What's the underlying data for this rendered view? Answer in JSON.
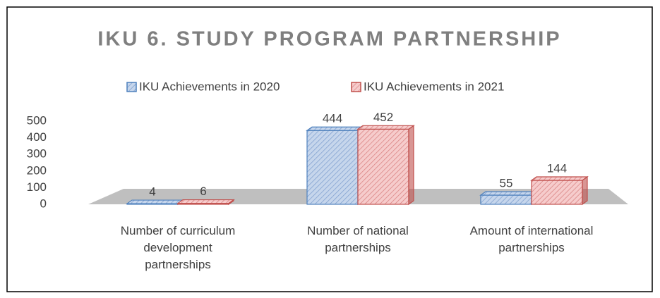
{
  "chart_data": {
    "type": "bar3d",
    "title": "IKU 6. STUDY PROGRAM PARTNERSHIP",
    "categories": [
      "Number of curriculum development partnerships",
      "Number of national partnerships",
      "Amount of international partnerships"
    ],
    "series": [
      {
        "name": "IKU Achievements in 2020",
        "color": "#4f81bd",
        "values": [
          4,
          444,
          55
        ]
      },
      {
        "name": "IKU Achievements in 2021",
        "color": "#c0504d",
        "values": [
          6,
          452,
          144
        ]
      }
    ],
    "ylim": [
      0,
      500
    ],
    "yticks": [
      0,
      100,
      200,
      300,
      400,
      500
    ],
    "legend": "top"
  }
}
